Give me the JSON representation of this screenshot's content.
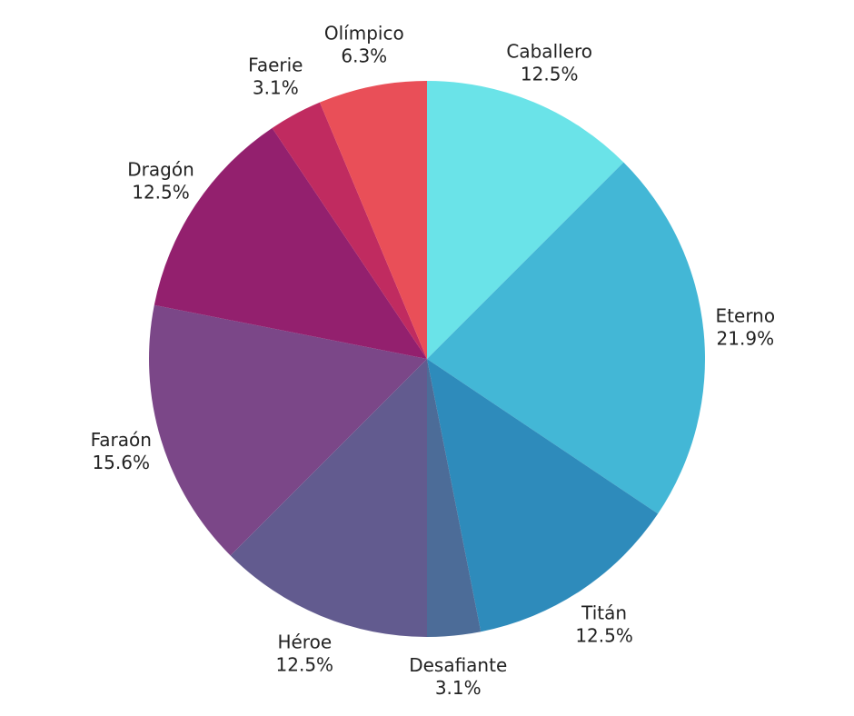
{
  "chart_data": {
    "type": "pie",
    "categories": [
      "Caballero",
      "Eterno",
      "Titán",
      "Desafiante",
      "Héroe",
      "Faraón",
      "Dragón",
      "Faerie",
      "Olímpico"
    ],
    "values": [
      12.5,
      21.9,
      12.5,
      3.1,
      12.5,
      15.6,
      12.5,
      3.1,
      6.3
    ],
    "value_labels": [
      "12.5%",
      "21.9%",
      "12.5%",
      "3.1%",
      "12.5%",
      "15.6%",
      "12.5%",
      "3.1%",
      "6.3%"
    ],
    "colors": [
      "#6ae3e8",
      "#43b7d6",
      "#2e8bbb",
      "#4c6c98",
      "#625b8f",
      "#7b4788",
      "#93206e",
      "#c02b60",
      "#e94f58"
    ]
  }
}
